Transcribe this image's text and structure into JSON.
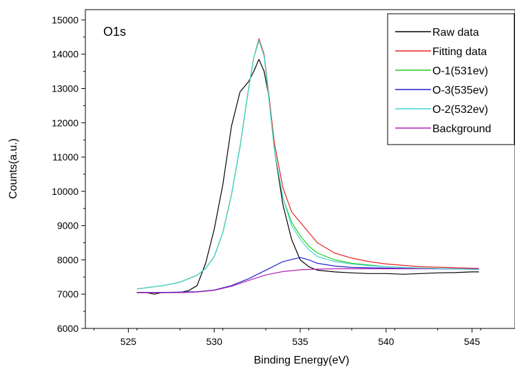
{
  "chart_data": {
    "type": "line",
    "title": "",
    "annotation": "O1s",
    "xlabel": "Binding Energy(eV)",
    "ylabel": "Counts(a.u.)",
    "xlim": [
      522.5,
      547.5
    ],
    "ylim": [
      6000,
      15300
    ],
    "xticks": [
      525,
      530,
      535,
      540,
      545
    ],
    "yticks": [
      6000,
      7000,
      8000,
      9000,
      10000,
      11000,
      12000,
      13000,
      14000,
      15000
    ],
    "grid": false,
    "legend_position": "top-right",
    "series": [
      {
        "name": "Raw data",
        "color": "#000000",
        "x": [
          525.5,
          526.0,
          526.5,
          527.0,
          527.5,
          528.0,
          528.5,
          529.0,
          529.5,
          530.0,
          530.5,
          531.0,
          531.5,
          532.0,
          532.3,
          532.6,
          532.9,
          533.2,
          533.5,
          534.0,
          534.5,
          535.0,
          535.5,
          536.0,
          537.0,
          538.0,
          539.0,
          540.0,
          541.0,
          542.0,
          543.0,
          544.0,
          545.0,
          545.4
        ],
        "y": [
          7050,
          7050,
          7000,
          7050,
          7050,
          7050,
          7100,
          7250,
          7900,
          8900,
          10200,
          11900,
          12900,
          13200,
          13500,
          13850,
          13500,
          12700,
          11200,
          9600,
          8600,
          8000,
          7800,
          7700,
          7650,
          7620,
          7600,
          7600,
          7580,
          7600,
          7620,
          7630,
          7650,
          7650
        ]
      },
      {
        "name": "Fitting data",
        "color": "#e8201e",
        "x": [
          525.5,
          527.0,
          528.0,
          529.0,
          529.5,
          530.0,
          530.5,
          531.0,
          531.5,
          532.0,
          532.3,
          532.6,
          532.9,
          533.2,
          533.5,
          534.0,
          534.5,
          535.0,
          535.5,
          536.0,
          537.0,
          538.0,
          539.0,
          540.0,
          542.0,
          545.4
        ],
        "y": [
          7150,
          7250,
          7350,
          7550,
          7750,
          8100,
          8800,
          9900,
          11300,
          13000,
          13900,
          14450,
          14000,
          12700,
          11400,
          10100,
          9400,
          9100,
          8800,
          8500,
          8200,
          8050,
          7950,
          7880,
          7800,
          7750
        ]
      },
      {
        "name": "O-1(531ev)",
        "color": "#22cc22",
        "x": [
          525.5,
          527.0,
          528.0,
          529.0,
          529.5,
          530.0,
          530.5,
          531.0,
          531.5,
          532.0,
          532.3,
          532.6,
          532.9,
          533.2,
          533.5,
          534.0,
          534.5,
          535.0,
          535.5,
          536.0,
          537.0,
          538.0,
          539.0,
          540.0,
          542.0,
          545.4
        ],
        "y": [
          7150,
          7250,
          7350,
          7550,
          7750,
          8100,
          8800,
          9900,
          11300,
          13000,
          13900,
          14400,
          13950,
          12600,
          11200,
          9800,
          9100,
          8700,
          8400,
          8200,
          8000,
          7900,
          7850,
          7800,
          7760,
          7720
        ]
      },
      {
        "name": "O-3(535ev)",
        "color": "#1e1ecc",
        "x": [
          525.5,
          527.0,
          528.0,
          529.0,
          530.0,
          531.0,
          532.0,
          533.0,
          534.0,
          535.0,
          535.5,
          536.0,
          537.0,
          538.0,
          540.0,
          542.0,
          545.4
        ],
        "y": [
          7050,
          7050,
          7060,
          7070,
          7120,
          7250,
          7450,
          7700,
          7950,
          8070,
          8000,
          7900,
          7820,
          7780,
          7760,
          7740,
          7730
        ]
      },
      {
        "name": "O-2(532ev)",
        "color": "#3fd6d6",
        "x": [
          525.5,
          527.0,
          528.0,
          529.0,
          529.5,
          530.0,
          530.5,
          531.0,
          531.5,
          532.0,
          532.3,
          532.6,
          532.9,
          533.2,
          533.5,
          534.0,
          534.5,
          535.0,
          535.5,
          536.0,
          537.0,
          538.0,
          539.0,
          540.0,
          542.0,
          545.4
        ],
        "y": [
          7150,
          7250,
          7350,
          7550,
          7750,
          8100,
          8800,
          9900,
          11300,
          13000,
          13900,
          14400,
          13950,
          12600,
          11200,
          9800,
          9000,
          8600,
          8300,
          8100,
          7950,
          7880,
          7830,
          7800,
          7760,
          7720
        ]
      },
      {
        "name": "Background",
        "color": "#b020b0",
        "x": [
          525.5,
          527.0,
          528.0,
          529.0,
          530.0,
          531.0,
          532.0,
          533.0,
          534.0,
          535.0,
          536.0,
          537.0,
          538.0,
          540.0,
          542.0,
          545.4
        ],
        "y": [
          7040,
          7040,
          7045,
          7060,
          7110,
          7230,
          7400,
          7560,
          7660,
          7710,
          7730,
          7740,
          7740,
          7740,
          7740,
          7740
        ]
      }
    ]
  }
}
